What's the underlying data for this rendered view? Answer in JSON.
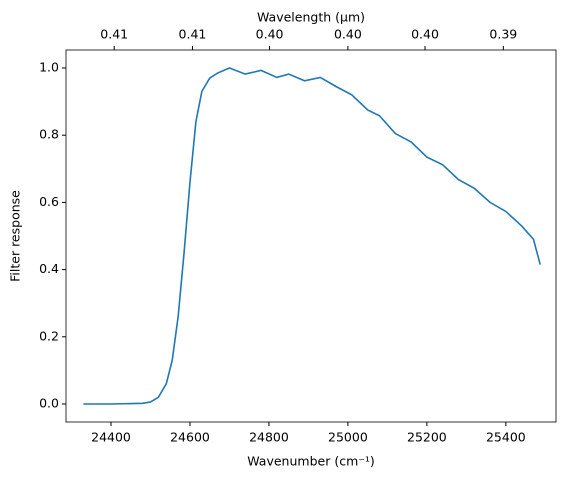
{
  "chart_data": {
    "type": "line",
    "xlabel": "Wavenumber (cm⁻¹)",
    "ylabel": "Filter response",
    "x2label": "Wavelength (μm)",
    "x": [
      24330,
      24400,
      24480,
      24500,
      24520,
      24540,
      24555,
      24570,
      24585,
      24600,
      24615,
      24630,
      24650,
      24670,
      24700,
      24740,
      24780,
      24820,
      24850,
      24890,
      24930,
      24970,
      25010,
      25050,
      25080,
      25120,
      25160,
      25200,
      25240,
      25280,
      25320,
      25360,
      25400,
      25440,
      25470,
      25487
    ],
    "series": [
      {
        "name": "Filter response",
        "color": "#1f77b4",
        "values": [
          0,
          0,
          0.002,
          0.006,
          0.02,
          0.06,
          0.13,
          0.26,
          0.45,
          0.66,
          0.84,
          0.93,
          0.97,
          0.985,
          1.0,
          0.982,
          0.993,
          0.972,
          0.982,
          0.962,
          0.972,
          0.945,
          0.92,
          0.875,
          0.858,
          0.805,
          0.78,
          0.735,
          0.712,
          0.668,
          0.642,
          0.6,
          0.573,
          0.53,
          0.49,
          0.415
        ]
      }
    ],
    "xlim": [
      24286,
      25527
    ],
    "ylim": [
      -0.0536,
      1.0536
    ],
    "xticks": [
      24400,
      24600,
      24800,
      25000,
      25200,
      25400
    ],
    "yticks": [
      {
        "value": 0,
        "label": "0.0"
      },
      0.2,
      0.4,
      0.6,
      0.8,
      {
        "value": 1,
        "label": "1.0"
      }
    ],
    "x2ticks": [
      {
        "value": 0.4097,
        "label": "0.41"
      },
      {
        "value": 0.4064,
        "label": "0.41"
      },
      {
        "value": 0.4032,
        "label": "0.40"
      },
      {
        "value": 0.4,
        "label": "0.40"
      },
      {
        "value": 0.3969,
        "label": "0.40"
      },
      {
        "value": 0.3938,
        "label": "0.39"
      }
    ]
  }
}
